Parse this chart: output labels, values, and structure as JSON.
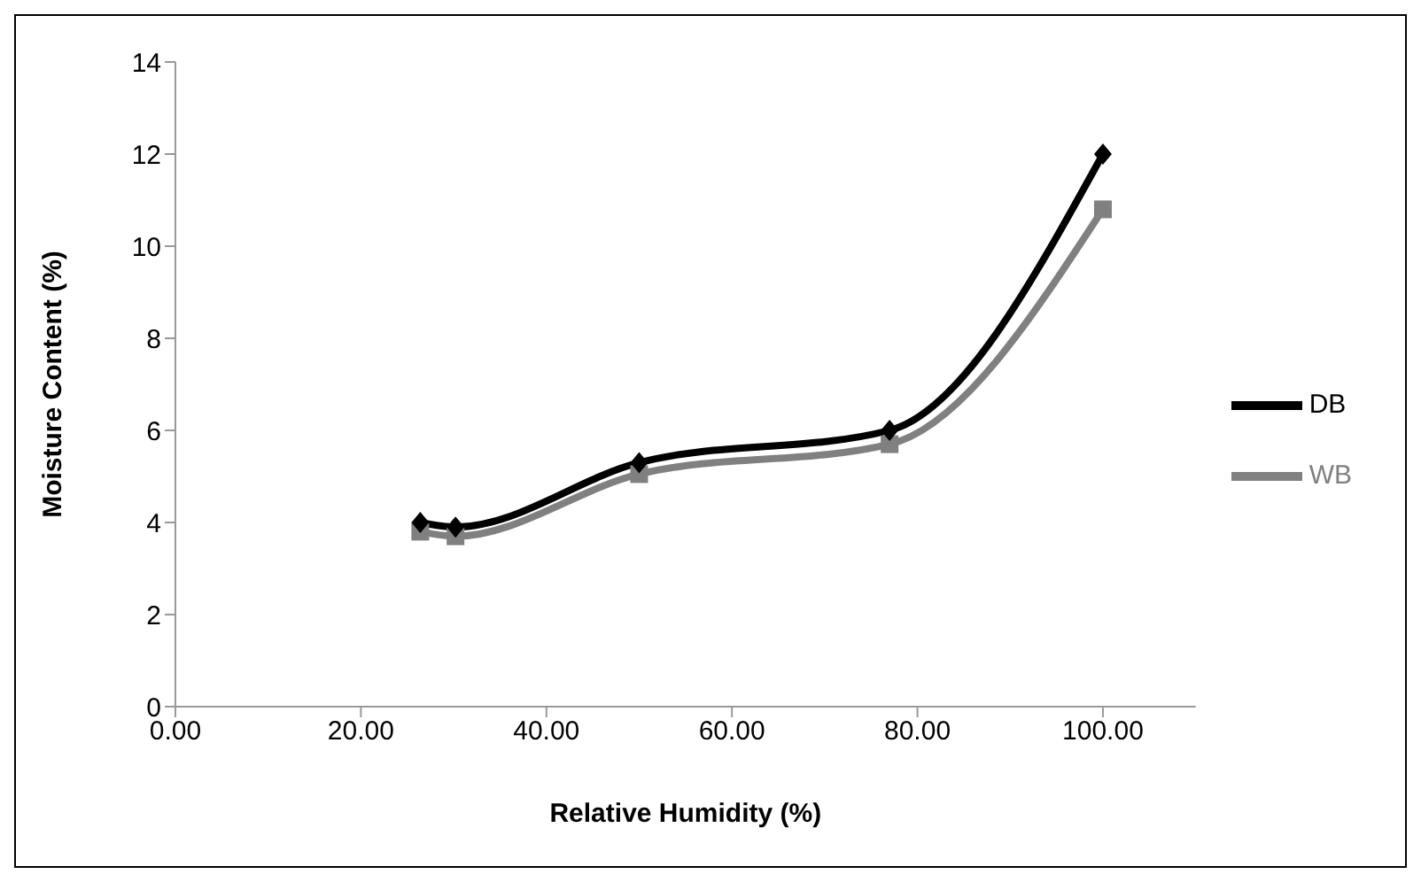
{
  "chart_data": {
    "type": "line",
    "xlabel": "Relative Humidity (%)",
    "ylabel": "Moisture Content (%)",
    "x": [
      26.4,
      30.2,
      50,
      77,
      100
    ],
    "series": [
      {
        "name": "DB",
        "color": "#000000",
        "marker": "diamond",
        "values": [
          4.0,
          3.9,
          5.3,
          6.0,
          12.0
        ]
      },
      {
        "name": "WB",
        "color": "#808080",
        "marker": "square",
        "values": [
          3.8,
          3.7,
          5.05,
          5.7,
          10.8
        ]
      }
    ],
    "xlim": [
      0,
      110
    ],
    "xticks": [
      {
        "value": 0,
        "label": "0.00"
      },
      {
        "value": 20,
        "label": "20.00"
      },
      {
        "value": 40,
        "label": "40.00"
      },
      {
        "value": 60,
        "label": "60.00"
      },
      {
        "value": 80,
        "label": "80.00"
      },
      {
        "value": 100,
        "label": "100.00"
      }
    ],
    "ylim": [
      0,
      14
    ],
    "yticks": [
      0,
      2,
      4,
      6,
      8,
      10,
      12,
      14
    ],
    "grid": false,
    "legend": "right",
    "line_style": "solid"
  }
}
